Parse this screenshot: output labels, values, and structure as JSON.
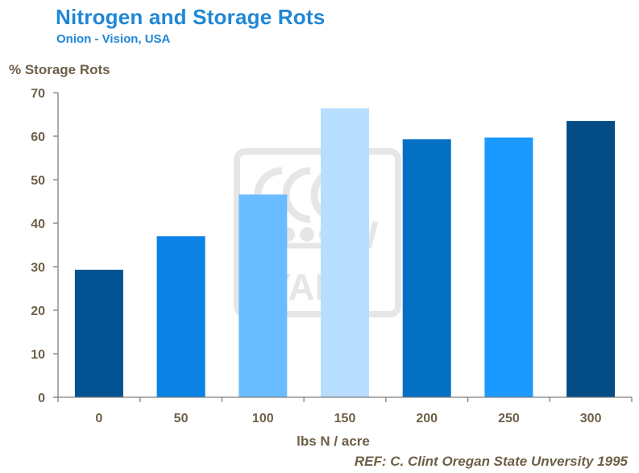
{
  "header": {
    "title": "Nitrogen and Storage Rots",
    "subtitle": "Onion - Vision, USA"
  },
  "watermark": {
    "text": "YARA",
    "color": "#d9d9d9"
  },
  "footer": {
    "reference": "REF: C. Clint Oregan State Unversity  1995"
  },
  "chart_data": {
    "type": "bar",
    "title": "Nitrogen and Storage Rots",
    "subtitle": "Onion - Vision, USA",
    "xlabel": "lbs N / acre",
    "ylabel": "% Storage Rots",
    "categories": [
      "0",
      "50",
      "100",
      "150",
      "200",
      "250",
      "300"
    ],
    "values": [
      29.3,
      37.0,
      46.6,
      66.4,
      59.3,
      59.7,
      63.5
    ],
    "bar_colors": [
      "#035292",
      "#0a83e4",
      "#69bcff",
      "#b8deff",
      "#0470c4",
      "#1a9aff",
      "#034c86"
    ],
    "ylim": [
      0,
      70
    ],
    "yticks": [
      0,
      10,
      20,
      30,
      40,
      50,
      60,
      70
    ],
    "grid": false,
    "legend": "none",
    "axis_color": "#7f7f7f",
    "tick_label_color": "#6d6048"
  }
}
